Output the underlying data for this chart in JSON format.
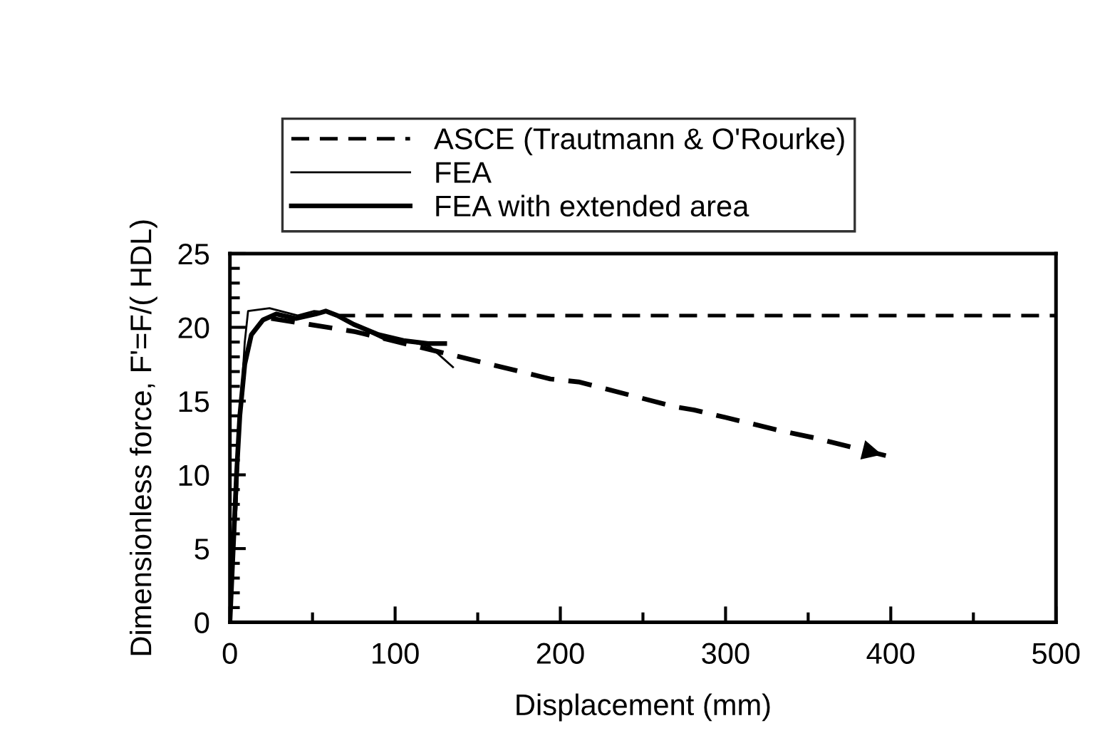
{
  "chart_data": {
    "type": "line",
    "xlabel": "Displacement (mm)",
    "ylabel": "Dimensionless force, F'=F/( HDL)",
    "xlim": [
      0,
      500
    ],
    "xticks": [
      0,
      100,
      200,
      300,
      400,
      500
    ],
    "ylim": [
      0,
      25
    ],
    "yticks": [
      0,
      5,
      10,
      15,
      20,
      25
    ],
    "grid": false,
    "legend": "top",
    "marker": "none",
    "series": [
      {
        "name": "ASCE (Trautmann & O'Rourke)",
        "color": "#000000",
        "line_style": "dashed",
        "x": [
          65,
          500
        ],
        "values": [
          20.8,
          20.8
        ]
      },
      {
        "name": "FEA",
        "color": "#000000",
        "line_style": "solid",
        "x": [
          0,
          1,
          4,
          6,
          9,
          11,
          24,
          41,
          51,
          62,
          76,
          93,
          110,
          121,
          135
        ],
        "values": [
          0,
          2.8,
          7.7,
          13.7,
          19.0,
          21.1,
          21.3,
          20.8,
          21.1,
          21.0,
          20.1,
          19.2,
          19.0,
          18.7,
          17.3
        ]
      },
      {
        "name": "FEA with extended area",
        "color": "#000000",
        "line_style": "solid",
        "x": [
          0,
          2,
          4,
          6,
          9,
          13,
          20,
          28,
          40,
          52,
          58,
          65,
          75,
          90,
          105,
          120,
          130
        ],
        "values": [
          0,
          5,
          10,
          14,
          17.5,
          19.5,
          20.5,
          20.9,
          20.6,
          20.9,
          21.1,
          20.8,
          20.2,
          19.5,
          19.1,
          18.9,
          18.9
        ]
      },
      {
        "color": "#000000",
        "line_style": "dashed",
        "x": [
          25,
          48,
          76,
          128,
          194,
          211,
          270,
          281,
          333,
          354,
          397
        ],
        "values": [
          20.6,
          20.2,
          19.7,
          18.3,
          16.5,
          16.3,
          14.6,
          14.4,
          13.0,
          12.5,
          11.3
        ]
      }
    ]
  }
}
